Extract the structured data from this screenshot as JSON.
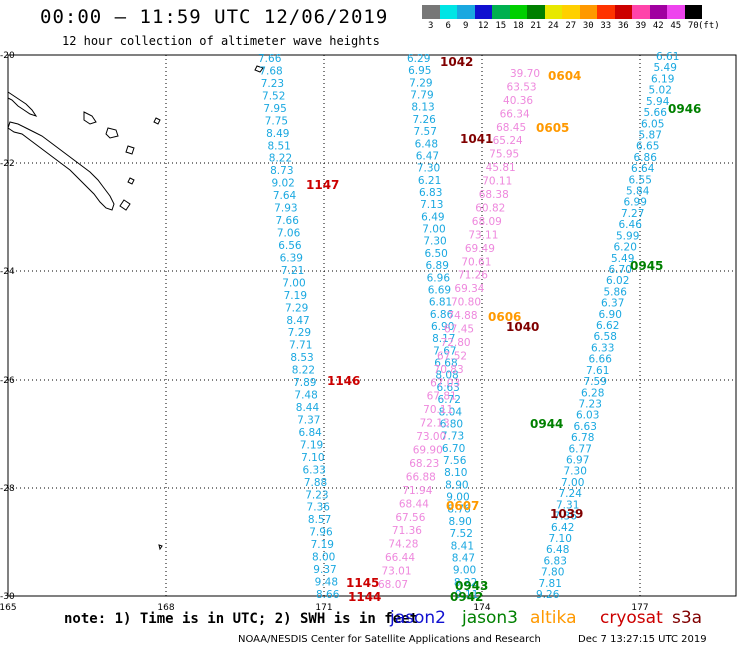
{
  "header": {
    "title": "00:00 – 11:59 UTC 12/06/2019",
    "subtitle": "12 hour collection of altimeter wave heights"
  },
  "color_scale": {
    "unit": "(ft)",
    "bins": [
      {
        "label": "3",
        "color": "#777777"
      },
      {
        "label": "6",
        "color": "#00e5e5"
      },
      {
        "label": "9",
        "color": "#1aa8e0"
      },
      {
        "label": "12",
        "color": "#1010d0"
      },
      {
        "label": "15",
        "color": "#00b050"
      },
      {
        "label": "18",
        "color": "#00d000"
      },
      {
        "label": "21",
        "color": "#008000"
      },
      {
        "label": "24",
        "color": "#e8e800"
      },
      {
        "label": "27",
        "color": "#ffd000"
      },
      {
        "label": "30",
        "color": "#ff9900"
      },
      {
        "label": "33",
        "color": "#ff3300"
      },
      {
        "label": "36",
        "color": "#cc0000"
      },
      {
        "label": "39",
        "color": "#ff44aa"
      },
      {
        "label": "42",
        "color": "#a000a0"
      },
      {
        "label": "45",
        "color": "#ee44ee"
      },
      {
        "label": "70",
        "color": "#000000"
      }
    ]
  },
  "axes": {
    "lat_labels": [
      "-20",
      "-22",
      "-24",
      "-26",
      "-28",
      "-30"
    ],
    "lon_labels": [
      "165",
      "168",
      "171",
      "174",
      "177"
    ]
  },
  "tracks": [
    {
      "satellite": "jason3",
      "color": "#1aa8e0",
      "values": [
        "7.66",
        "7.68",
        "7.23",
        "7.52",
        "7.95",
        "7.75",
        "8.49",
        "8.51",
        "8.22",
        "8.73",
        "9.02",
        "7.64",
        "7.93",
        "7.66",
        "7.06",
        "6.56",
        "6.39",
        "7.21",
        "7.00",
        "7.19",
        "7.29",
        "8.47",
        "7.29",
        "7.71",
        "8.53",
        "8.22",
        "7.89",
        "7.48",
        "8.44",
        "7.37",
        "6.84",
        "7.19",
        "7.10",
        "6.33",
        "7.88",
        "7.23",
        "7.36",
        "8.57",
        "7.96",
        "7.19",
        "8.00",
        "9.37",
        "9.48",
        "8.66"
      ]
    },
    {
      "satellite": "jason3",
      "color": "#1aa8e0",
      "values": [
        "6.29",
        "6.95",
        "7.29",
        "7.79",
        "8.13",
        "7.26",
        "7.57",
        "6.48",
        "6.47",
        "7.30",
        "6.21",
        "6.83",
        "7.13",
        "6.49",
        "7.00",
        "7.30",
        "6.50",
        "6.89",
        "6.96",
        "6.69",
        "6.81",
        "6.86",
        "6.90",
        "8.17",
        "7.67",
        "6.68",
        "8.08",
        "6.63",
        "6.72",
        "8.04",
        "6.80",
        "7.73",
        "6.70",
        "7.56",
        "8.10",
        "8.90",
        "9.00",
        "8.76",
        "8.90",
        "7.52",
        "8.41",
        "8.47",
        "9.00",
        "8.22",
        "9.11"
      ]
    },
    {
      "satellite": "altika",
      "color": "#ee88dd",
      "values": [
        "39.70",
        "63.53",
        "40.36",
        "66.34",
        "68.45",
        "65.24",
        "75.95",
        "45.81",
        "70.11",
        "68.38",
        "60.82",
        "68.09",
        "73.11",
        "69.49",
        "70.61",
        "71.26",
        "69.34",
        "70.80",
        "74.88",
        "67.45",
        "72.80",
        "67.52",
        "70.83",
        "67.03",
        "67.81",
        "70.11",
        "72.13",
        "73.00",
        "69.90",
        "68.23",
        "66.88",
        "71.94",
        "68.44",
        "67.56",
        "71.36",
        "74.28",
        "66.44",
        "73.01",
        "68.07"
      ]
    },
    {
      "satellite": "jason2",
      "color": "#1aa8e0",
      "values": [
        "6.61",
        "5.49",
        "6.19",
        "5.02",
        "5.94",
        "5.66",
        "6.05",
        "5.87",
        "6.65",
        "6.86",
        "6.64",
        "6.55",
        "5.84",
        "6.99",
        "7.27",
        "6.46",
        "5.99",
        "6.20",
        "5.49",
        "6.70",
        "6.02",
        "5.86",
        "6.37",
        "6.90",
        "6.62",
        "6.58",
        "6.33",
        "6.66",
        "7.61",
        "7.59",
        "6.28",
        "7.23",
        "6.03",
        "6.63",
        "6.78",
        "6.77",
        "6.97",
        "7.30",
        "7.00",
        "7.24",
        "7.31",
        "7.36",
        "6.42",
        "7.10",
        "6.48",
        "6.83",
        "7.80",
        "7.81",
        "9.26"
      ]
    }
  ],
  "time_labels": [
    {
      "text": "1042",
      "color": "#800000"
    },
    {
      "text": "0604",
      "color": "#ff9900"
    },
    {
      "text": "0946",
      "color": "#008000"
    },
    {
      "text": "0605",
      "color": "#ff9900"
    },
    {
      "text": "1041",
      "color": "#800000"
    },
    {
      "text": "1147",
      "color": "#cc0000"
    },
    {
      "text": "0945",
      "color": "#008000"
    },
    {
      "text": "0606",
      "color": "#ff9900"
    },
    {
      "text": "1040",
      "color": "#800000"
    },
    {
      "text": "1146",
      "color": "#cc0000"
    },
    {
      "text": "0944",
      "color": "#008000"
    },
    {
      "text": "0607",
      "color": "#ff9900"
    },
    {
      "text": "1039",
      "color": "#800000"
    },
    {
      "text": "1145",
      "color": "#cc0000"
    },
    {
      "text": "1144",
      "color": "#cc0000"
    },
    {
      "text": "0943",
      "color": "#008000"
    },
    {
      "text": "0942",
      "color": "#008000"
    }
  ],
  "note": "note: 1) Time is in UTC; 2) SWH is in feet",
  "legend": [
    {
      "name": "jason2",
      "color": "#1010d0"
    },
    {
      "name": "jason3",
      "color": "#008000"
    },
    {
      "name": "altika",
      "color": "#ff9900"
    },
    {
      "name": "cryosat",
      "color": "#cc0000"
    },
    {
      "name": "s3a",
      "color": "#800000"
    }
  ],
  "footer": {
    "credit": "NOAA/NESDIS Center for Satellite Applications and Research",
    "timestamp": "Dec  7 13:27:15 UTC 2019"
  }
}
